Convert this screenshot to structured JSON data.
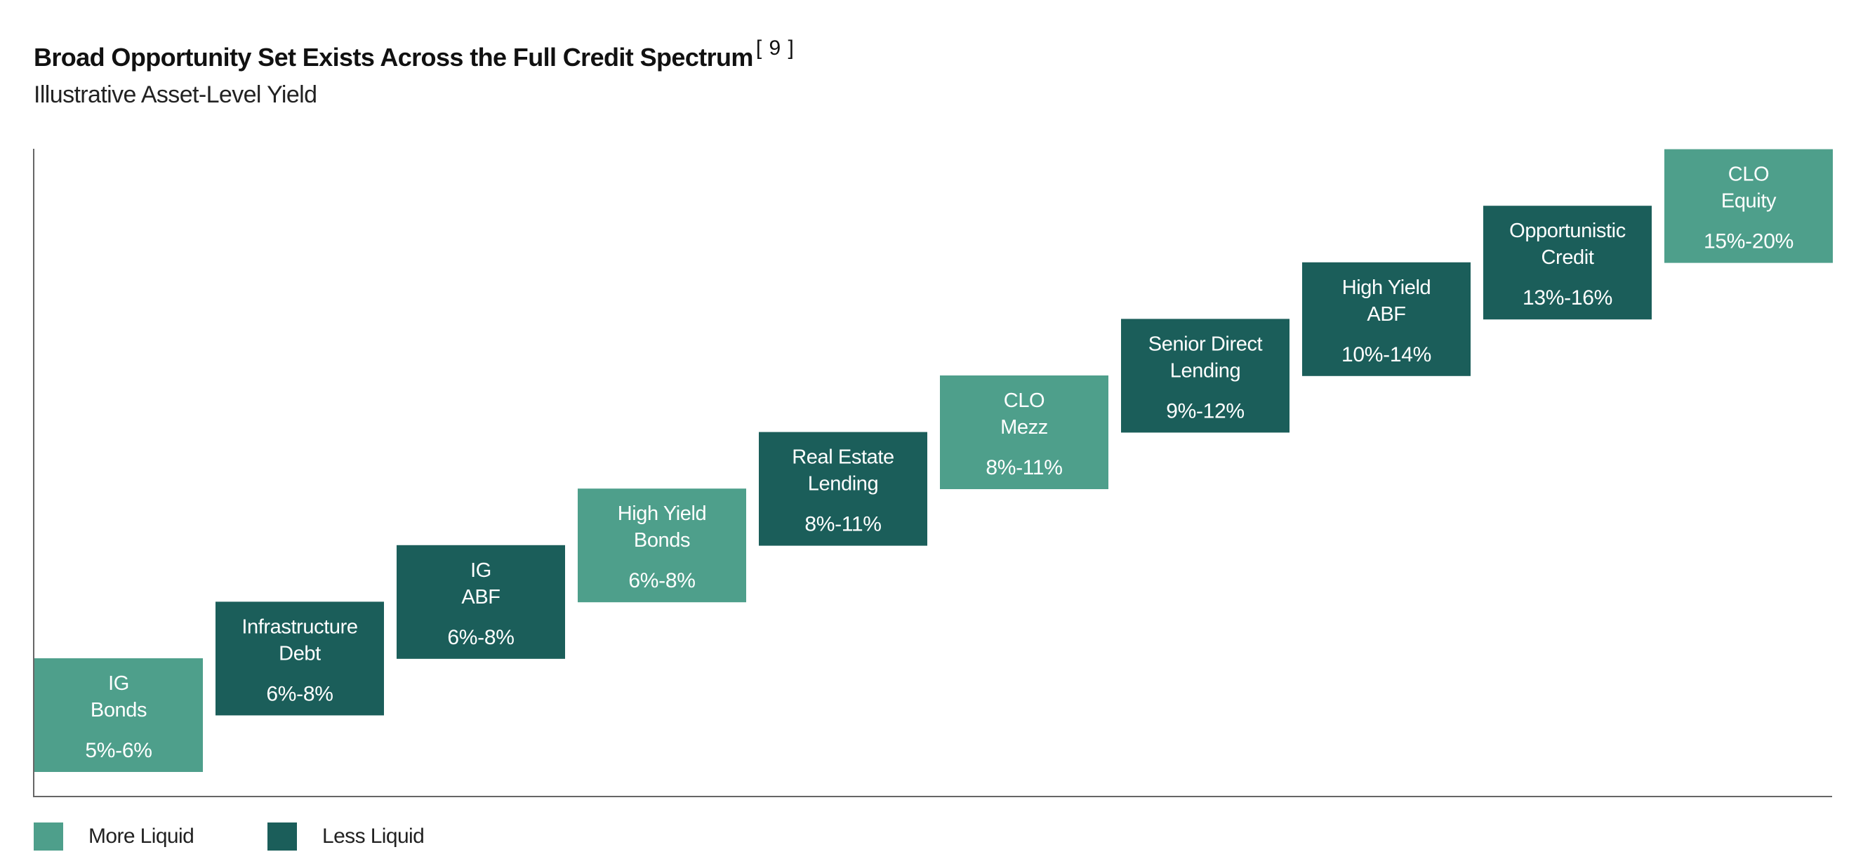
{
  "header": {
    "title": "Broad Opportunity Set Exists Across the Full Credit Spectrum",
    "footnote": "[ 9 ]",
    "subtitle": "Illustrative Asset-Level Yield"
  },
  "colors": {
    "more_liquid": "#4e9f8b",
    "less_liquid": "#1b5e5a",
    "axis": "#666666",
    "box_text": "#ffffff"
  },
  "legend": {
    "items": [
      {
        "label": "More Liquid",
        "color": "#4e9f8b"
      },
      {
        "label": "Less Liquid",
        "color": "#1b5e5a"
      }
    ]
  },
  "chart_data": {
    "type": "bar",
    "orientation": "stepped range boxes",
    "title": "Broad Opportunity Set Exists Across the Full Credit Spectrum",
    "subtitle": "Illustrative Asset-Level Yield",
    "xlabel": "",
    "ylabel": "",
    "grid": false,
    "legend_position": "bottom-left",
    "categories": [
      [
        "IG",
        "Bonds"
      ],
      [
        "Infrastructure",
        "Debt"
      ],
      [
        "IG",
        "ABF"
      ],
      [
        "High Yield",
        "Bonds"
      ],
      [
        "Real Estate",
        "Lending"
      ],
      [
        "CLO",
        "Mezz"
      ],
      [
        "Senior Direct",
        "Lending"
      ],
      [
        "High Yield",
        "ABF"
      ],
      [
        "Opportunistic",
        "Credit"
      ],
      [
        "CLO",
        "Equity"
      ]
    ],
    "ranges": [
      "5%-6%",
      "6%-8%",
      "6%-8%",
      "6%-8%",
      "8%-11%",
      "8%-11%",
      "9%-12%",
      "10%-14%",
      "13%-16%",
      "15%-20%"
    ],
    "liquidity": [
      "More Liquid",
      "Less Liquid",
      "Less Liquid",
      "More Liquid",
      "Less Liquid",
      "More Liquid",
      "Less Liquid",
      "Less Liquid",
      "Less Liquid",
      "More Liquid"
    ],
    "rank": [
      1,
      2,
      3,
      4,
      5,
      6,
      7,
      8,
      9,
      10
    ]
  }
}
